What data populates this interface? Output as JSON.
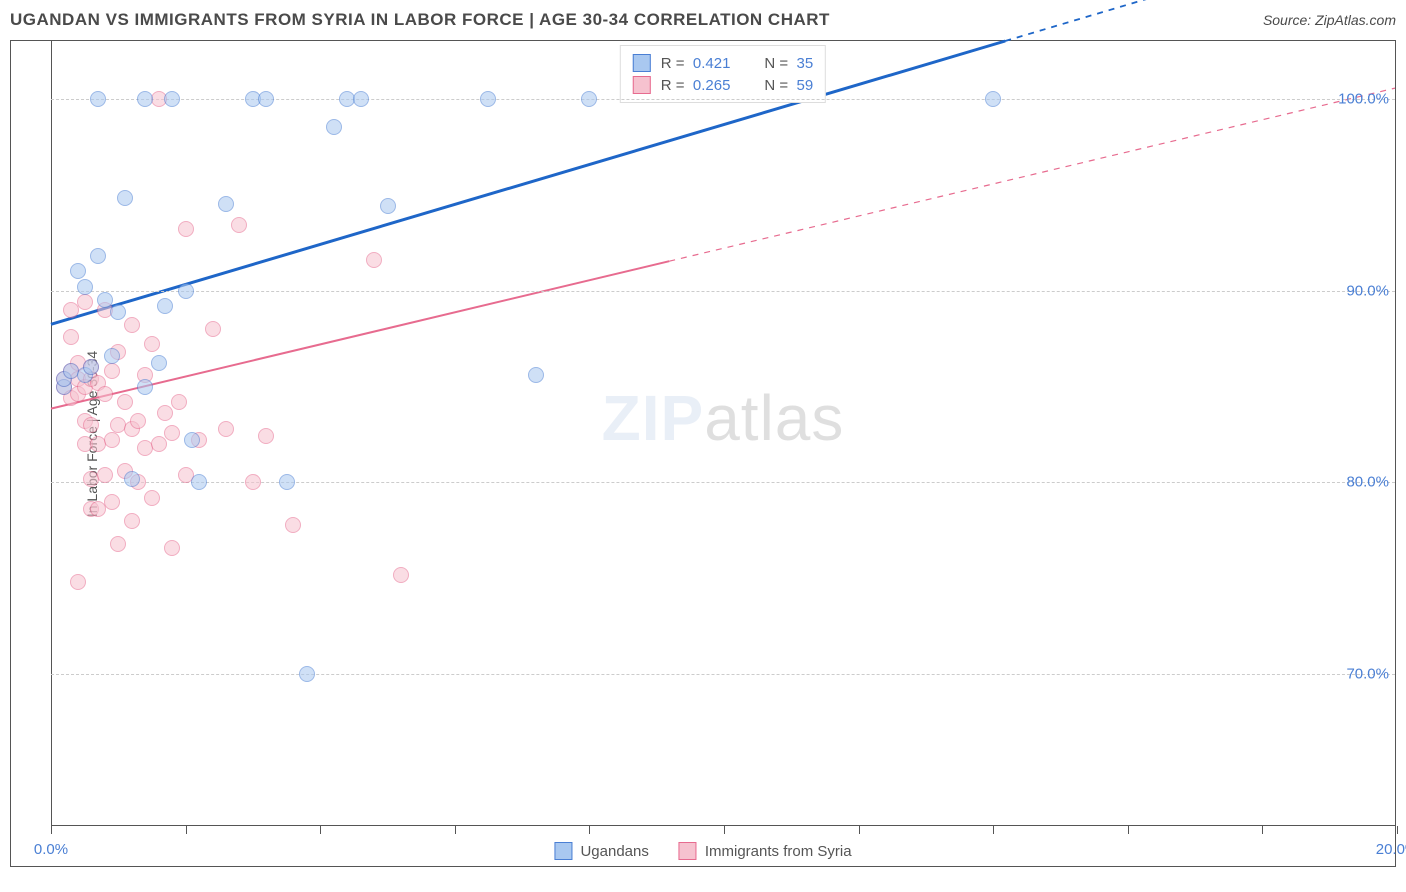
{
  "title": "UGANDAN VS IMMIGRANTS FROM SYRIA IN LABOR FORCE | AGE 30-34 CORRELATION CHART",
  "source": "Source: ZipAtlas.com",
  "ylabel": "In Labor Force | Age 30-34",
  "watermark": {
    "bold": "ZIP",
    "rest": "atlas"
  },
  "chart": {
    "type": "scatter",
    "background_color": "#ffffff",
    "grid_color": "#cccccc",
    "grid_dash": true,
    "axis_color": "#555555",
    "xlim": [
      0,
      20
    ],
    "ylim": [
      62,
      103
    ],
    "xticks": [
      0,
      2,
      4,
      6,
      8,
      10,
      12,
      14,
      16,
      18,
      20
    ],
    "xtick_labels_shown": {
      "0": "0.0%",
      "20": "20.0%"
    },
    "yticks": [
      70,
      80,
      90,
      100
    ],
    "ytick_labels": {
      "70": "70.0%",
      "80": "80.0%",
      "90": "90.0%",
      "100": "100.0%"
    },
    "series": [
      {
        "id": "ugandans",
        "label": "Ugandans",
        "marker_fill": "#a9c8f0",
        "marker_stroke": "#4a7fd4",
        "line_color": "#1e66c8",
        "r": "0.421",
        "n": "35",
        "regression": {
          "x1": 0,
          "y1": 88.2,
          "x2": 14.2,
          "y2": 103,
          "extrapolate_to": 20,
          "line_width": 3
        },
        "points": [
          [
            0.2,
            85.0
          ],
          [
            0.2,
            85.4
          ],
          [
            0.3,
            85.8
          ],
          [
            0.4,
            91.0
          ],
          [
            0.5,
            85.6
          ],
          [
            0.5,
            90.2
          ],
          [
            0.6,
            86.0
          ],
          [
            0.7,
            100.0
          ],
          [
            0.7,
            91.8
          ],
          [
            0.8,
            89.5
          ],
          [
            0.9,
            86.6
          ],
          [
            1.0,
            88.9
          ],
          [
            1.1,
            94.8
          ],
          [
            1.2,
            80.2
          ],
          [
            1.4,
            85.0
          ],
          [
            1.4,
            100.0
          ],
          [
            1.6,
            86.2
          ],
          [
            1.7,
            89.2
          ],
          [
            1.8,
            100.0
          ],
          [
            2.0,
            90.0
          ],
          [
            2.1,
            82.2
          ],
          [
            2.2,
            80.0
          ],
          [
            2.6,
            94.5
          ],
          [
            3.0,
            100.0
          ],
          [
            3.2,
            100.0
          ],
          [
            3.5,
            80.0
          ],
          [
            3.8,
            70.0
          ],
          [
            4.2,
            98.5
          ],
          [
            4.4,
            100.0
          ],
          [
            4.6,
            100.0
          ],
          [
            5.0,
            94.4
          ],
          [
            6.5,
            100.0
          ],
          [
            7.2,
            85.6
          ],
          [
            8.0,
            100.0
          ],
          [
            14.0,
            100.0
          ]
        ]
      },
      {
        "id": "syria",
        "label": "Immigrants from Syria",
        "marker_fill": "#f6c2cf",
        "marker_stroke": "#e76b8f",
        "line_color": "#e76b8f",
        "r": "0.265",
        "n": "59",
        "regression": {
          "x1": 0,
          "y1": 83.8,
          "x2": 9.2,
          "y2": 91.5,
          "extrapolate_to": 20,
          "line_width": 2
        },
        "points": [
          [
            0.2,
            85.0
          ],
          [
            0.2,
            85.4
          ],
          [
            0.3,
            84.4
          ],
          [
            0.3,
            85.8
          ],
          [
            0.3,
            87.6
          ],
          [
            0.3,
            89.0
          ],
          [
            0.4,
            84.6
          ],
          [
            0.4,
            85.4
          ],
          [
            0.4,
            86.2
          ],
          [
            0.4,
            74.8
          ],
          [
            0.5,
            82.0
          ],
          [
            0.5,
            83.2
          ],
          [
            0.5,
            85.0
          ],
          [
            0.5,
            89.4
          ],
          [
            0.6,
            78.6
          ],
          [
            0.6,
            80.2
          ],
          [
            0.6,
            83.0
          ],
          [
            0.6,
            85.4
          ],
          [
            0.6,
            86.0
          ],
          [
            0.7,
            78.6
          ],
          [
            0.7,
            82.0
          ],
          [
            0.7,
            85.2
          ],
          [
            0.8,
            80.4
          ],
          [
            0.8,
            84.6
          ],
          [
            0.8,
            89.0
          ],
          [
            0.9,
            79.0
          ],
          [
            0.9,
            82.2
          ],
          [
            0.9,
            85.8
          ],
          [
            1.0,
            76.8
          ],
          [
            1.0,
            83.0
          ],
          [
            1.0,
            86.8
          ],
          [
            1.1,
            80.6
          ],
          [
            1.1,
            84.2
          ],
          [
            1.2,
            78.0
          ],
          [
            1.2,
            82.8
          ],
          [
            1.2,
            88.2
          ],
          [
            1.3,
            80.0
          ],
          [
            1.3,
            83.2
          ],
          [
            1.4,
            81.8
          ],
          [
            1.4,
            85.6
          ],
          [
            1.5,
            79.2
          ],
          [
            1.5,
            87.2
          ],
          [
            1.6,
            82.0
          ],
          [
            1.6,
            100.0
          ],
          [
            1.7,
            83.6
          ],
          [
            1.8,
            76.6
          ],
          [
            1.8,
            82.6
          ],
          [
            1.9,
            84.2
          ],
          [
            2.0,
            80.4
          ],
          [
            2.0,
            93.2
          ],
          [
            2.2,
            82.2
          ],
          [
            2.4,
            88.0
          ],
          [
            2.6,
            82.8
          ],
          [
            2.8,
            93.4
          ],
          [
            3.0,
            80.0
          ],
          [
            3.2,
            82.4
          ],
          [
            3.6,
            77.8
          ],
          [
            4.8,
            91.6
          ],
          [
            5.2,
            75.2
          ]
        ]
      }
    ]
  },
  "legend_box": {
    "r_label": "R =",
    "n_label": "N ="
  },
  "bottom_legend": [
    {
      "series": "ugandans"
    },
    {
      "series": "syria"
    }
  ],
  "colors": {
    "title": "#4a4a4a",
    "tick_label": "#4a7fd4",
    "ylabel": "#555555"
  },
  "font": {
    "title_size": 17,
    "tick_size": 15,
    "ylabel_size": 14
  }
}
